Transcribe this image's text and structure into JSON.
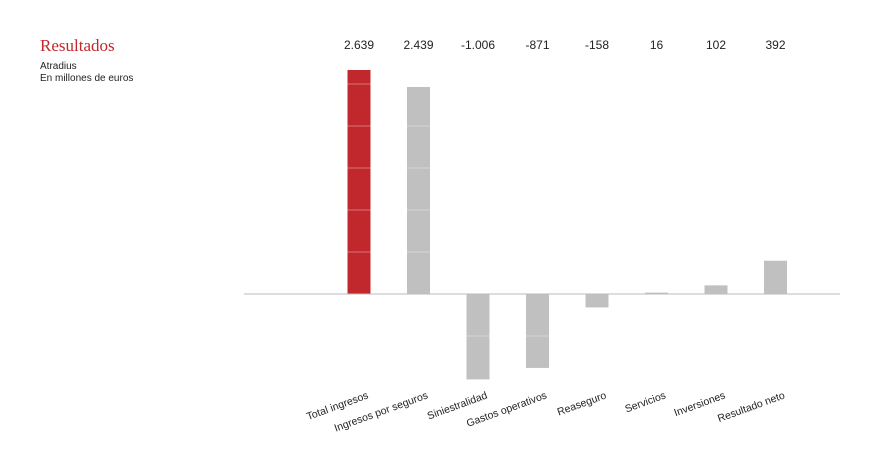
{
  "chart_data": {
    "type": "bar",
    "title": "Resultados",
    "subtitle": [
      "Atradius",
      "En millones de euros"
    ],
    "categories": [
      "Total ingresos",
      "Ingresos por seguros",
      "Siniestralidad",
      "Gastos operativos",
      "Reaseguro",
      "Servicios",
      "Inversiones",
      "Resultado neto"
    ],
    "values": [
      2639,
      2439,
      -1006,
      -871,
      -158,
      16,
      102,
      392
    ],
    "value_labels": [
      "2.639",
      "2.439",
      "-1.006",
      "-871",
      "-158",
      "16",
      "102",
      "392"
    ],
    "ylim": [
      -1006,
      2639
    ],
    "grid": false,
    "colors": {
      "highlight": "#c0282d",
      "bar": "#c0c0c0",
      "axis": "#bbbbbb",
      "title": "#c0282d"
    }
  }
}
